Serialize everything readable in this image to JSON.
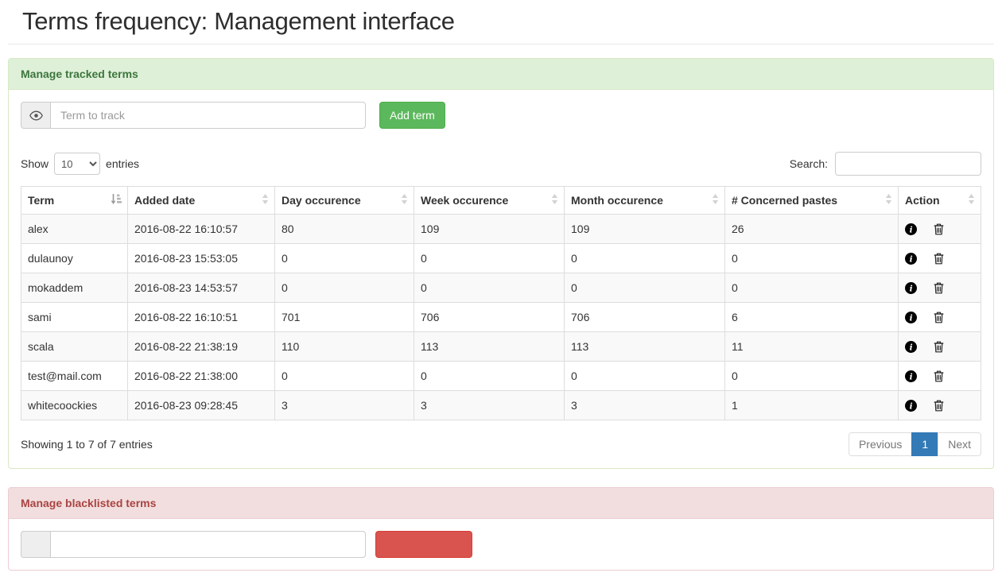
{
  "page": {
    "title": "Terms frequency: Management interface"
  },
  "colors": {
    "success_btn": "#5cb85c",
    "success_panel_bg": "#dff0d8",
    "success_panel_text": "#3c763d",
    "danger_btn": "#d9534f",
    "danger_panel_bg": "#f2dede",
    "danger_panel_text": "#a94442",
    "pagination_active": "#337ab7"
  },
  "tracked_panel": {
    "title": "Manage tracked terms",
    "input_addon_icon": "eye-icon",
    "term_input_placeholder": "Term to track",
    "add_button_label": "Add term",
    "show_label": "Show",
    "entries_label": "entries",
    "page_length_value": "10",
    "search_label": "Search:",
    "search_value": "",
    "table": {
      "columns": [
        "Term",
        "Added date",
        "Day occurence",
        "Week occurence",
        "Month occurence",
        "# Concerned pastes",
        "Action"
      ],
      "sort_state": "Term ascending",
      "row_action_icons": [
        "info-circle-icon",
        "trash-icon"
      ],
      "rows": [
        {
          "term": "alex",
          "added": "2016-08-22 16:10:57",
          "day": "80",
          "week": "109",
          "month": "109",
          "pastes": "26"
        },
        {
          "term": "dulaunoy",
          "added": "2016-08-23 15:53:05",
          "day": "0",
          "week": "0",
          "month": "0",
          "pastes": "0"
        },
        {
          "term": "mokaddem",
          "added": "2016-08-23 14:53:57",
          "day": "0",
          "week": "0",
          "month": "0",
          "pastes": "0"
        },
        {
          "term": "sami",
          "added": "2016-08-22 16:10:51",
          "day": "701",
          "week": "706",
          "month": "706",
          "pastes": "6"
        },
        {
          "term": "scala",
          "added": "2016-08-22 21:38:19",
          "day": "110",
          "week": "113",
          "month": "113",
          "pastes": "11"
        },
        {
          "term": "test@mail.com",
          "added": "2016-08-22 21:38:00",
          "day": "0",
          "week": "0",
          "month": "0",
          "pastes": "0"
        },
        {
          "term": "whitecoockies",
          "added": "2016-08-23 09:28:45",
          "day": "3",
          "week": "3",
          "month": "3",
          "pastes": "1"
        }
      ]
    },
    "info_text": "Showing 1 to 7 of 7 entries",
    "pagination": {
      "previous": "Previous",
      "current": "1",
      "next": "Next"
    }
  },
  "blacklist_panel": {
    "title": "Manage blacklisted terms",
    "term_input_value": "",
    "add_button_label": ""
  }
}
